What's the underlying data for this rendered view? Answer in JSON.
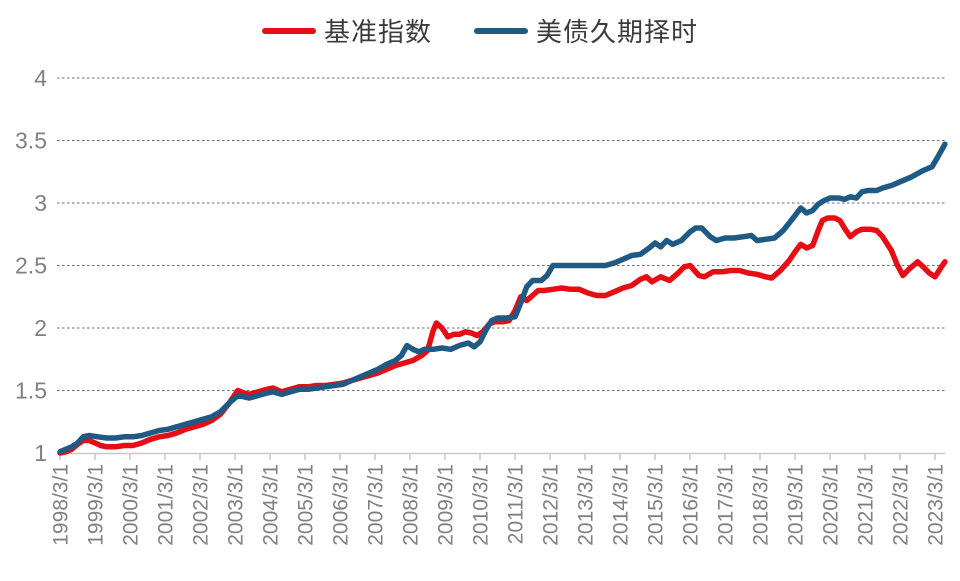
{
  "chart_data": {
    "type": "line",
    "title": "",
    "legend_position": "top-center",
    "grid": "horizontal-dashed",
    "x_axis": {
      "tick_labels": [
        "1998/3/1",
        "1999/3/1",
        "2000/3/1",
        "2001/3/1",
        "2002/3/1",
        "2003/3/1",
        "2004/3/1",
        "2005/3/1",
        "2006/3/1",
        "2007/3/1",
        "2008/3/1",
        "2009/3/1",
        "2010/3/1",
        "2011/3/1",
        "2012/3/1",
        "2013/3/1",
        "2014/3/1",
        "2015/3/1",
        "2016/3/1",
        "2017/3/1",
        "2018/3/1",
        "2019/3/1",
        "2020/3/1",
        "2021/3/1",
        "2022/3/1",
        "2023/3/1"
      ],
      "label_rotation_deg": 90
    },
    "y_axis": {
      "min": 1,
      "max": 4,
      "ticks": [
        1,
        1.5,
        2,
        2.5,
        3,
        3.5,
        4
      ]
    },
    "colors": {
      "benchmark_red": "#e60d15",
      "strategy_blue": "#1e5a84",
      "axis_text": "#808080",
      "gridline": "#6e6e6e",
      "axis_line": "#c8c8c8"
    },
    "series": [
      {
        "name": "基准指数",
        "color": "#e60d15",
        "points": [
          [
            1998.17,
            1.0
          ],
          [
            1998.33,
            1.01
          ],
          [
            1998.5,
            1.03
          ],
          [
            1998.67,
            1.07
          ],
          [
            1998.83,
            1.1
          ],
          [
            1999.0,
            1.1
          ],
          [
            1999.17,
            1.08
          ],
          [
            1999.33,
            1.06
          ],
          [
            1999.5,
            1.05
          ],
          [
            1999.75,
            1.05
          ],
          [
            2000.0,
            1.06
          ],
          [
            2000.25,
            1.06
          ],
          [
            2000.5,
            1.08
          ],
          [
            2000.75,
            1.11
          ],
          [
            2001.0,
            1.13
          ],
          [
            2001.25,
            1.14
          ],
          [
            2001.5,
            1.16
          ],
          [
            2001.75,
            1.19
          ],
          [
            2002.0,
            1.21
          ],
          [
            2002.25,
            1.23
          ],
          [
            2002.5,
            1.26
          ],
          [
            2002.75,
            1.31
          ],
          [
            2003.0,
            1.4
          ],
          [
            2003.25,
            1.5
          ],
          [
            2003.42,
            1.48
          ],
          [
            2003.58,
            1.47
          ],
          [
            2003.83,
            1.49
          ],
          [
            2004.08,
            1.51
          ],
          [
            2004.25,
            1.52
          ],
          [
            2004.5,
            1.49
          ],
          [
            2004.75,
            1.51
          ],
          [
            2005.0,
            1.53
          ],
          [
            2005.25,
            1.53
          ],
          [
            2005.5,
            1.54
          ],
          [
            2005.75,
            1.54
          ],
          [
            2006.0,
            1.55
          ],
          [
            2006.25,
            1.56
          ],
          [
            2006.5,
            1.58
          ],
          [
            2006.75,
            1.6
          ],
          [
            2007.0,
            1.62
          ],
          [
            2007.25,
            1.64
          ],
          [
            2007.5,
            1.67
          ],
          [
            2007.75,
            1.7
          ],
          [
            2008.0,
            1.72
          ],
          [
            2008.25,
            1.74
          ],
          [
            2008.5,
            1.78
          ],
          [
            2008.67,
            1.82
          ],
          [
            2008.83,
            1.98
          ],
          [
            2008.92,
            2.04
          ],
          [
            2009.08,
            2.0
          ],
          [
            2009.25,
            1.93
          ],
          [
            2009.42,
            1.95
          ],
          [
            2009.58,
            1.95
          ],
          [
            2009.75,
            1.97
          ],
          [
            2009.92,
            1.96
          ],
          [
            2010.08,
            1.94
          ],
          [
            2010.25,
            1.97
          ],
          [
            2010.42,
            2.03
          ],
          [
            2010.58,
            2.05
          ],
          [
            2010.83,
            2.05
          ],
          [
            2011.0,
            2.06
          ],
          [
            2011.17,
            2.14
          ],
          [
            2011.33,
            2.25
          ],
          [
            2011.5,
            2.22
          ],
          [
            2011.67,
            2.26
          ],
          [
            2011.83,
            2.3
          ],
          [
            2012.0,
            2.3
          ],
          [
            2012.25,
            2.31
          ],
          [
            2012.5,
            2.32
          ],
          [
            2012.75,
            2.31
          ],
          [
            2013.0,
            2.31
          ],
          [
            2013.25,
            2.28
          ],
          [
            2013.5,
            2.26
          ],
          [
            2013.75,
            2.26
          ],
          [
            2014.0,
            2.29
          ],
          [
            2014.25,
            2.32
          ],
          [
            2014.5,
            2.34
          ],
          [
            2014.75,
            2.39
          ],
          [
            2014.92,
            2.41
          ],
          [
            2015.08,
            2.37
          ],
          [
            2015.33,
            2.41
          ],
          [
            2015.58,
            2.38
          ],
          [
            2015.83,
            2.44
          ],
          [
            2016.0,
            2.49
          ],
          [
            2016.17,
            2.5
          ],
          [
            2016.42,
            2.42
          ],
          [
            2016.58,
            2.41
          ],
          [
            2016.83,
            2.45
          ],
          [
            2017.08,
            2.45
          ],
          [
            2017.33,
            2.46
          ],
          [
            2017.58,
            2.46
          ],
          [
            2017.83,
            2.44
          ],
          [
            2018.08,
            2.43
          ],
          [
            2018.33,
            2.41
          ],
          [
            2018.5,
            2.4
          ],
          [
            2018.75,
            2.46
          ],
          [
            2019.0,
            2.54
          ],
          [
            2019.17,
            2.61
          ],
          [
            2019.33,
            2.67
          ],
          [
            2019.5,
            2.64
          ],
          [
            2019.67,
            2.66
          ],
          [
            2019.83,
            2.78
          ],
          [
            2019.95,
            2.86
          ],
          [
            2020.1,
            2.88
          ],
          [
            2020.3,
            2.88
          ],
          [
            2020.45,
            2.86
          ],
          [
            2020.6,
            2.79
          ],
          [
            2020.75,
            2.73
          ],
          [
            2020.92,
            2.77
          ],
          [
            2021.08,
            2.79
          ],
          [
            2021.33,
            2.79
          ],
          [
            2021.5,
            2.78
          ],
          [
            2021.67,
            2.73
          ],
          [
            2021.92,
            2.62
          ],
          [
            2022.08,
            2.51
          ],
          [
            2022.25,
            2.42
          ],
          [
            2022.42,
            2.47
          ],
          [
            2022.67,
            2.53
          ],
          [
            2022.83,
            2.49
          ],
          [
            2023.0,
            2.44
          ],
          [
            2023.17,
            2.41
          ],
          [
            2023.33,
            2.48
          ],
          [
            2023.45,
            2.53
          ]
        ]
      },
      {
        "name": "美债久期择时",
        "color": "#1e5a84",
        "points": [
          [
            1998.17,
            1.01
          ],
          [
            1998.33,
            1.03
          ],
          [
            1998.5,
            1.05
          ],
          [
            1998.67,
            1.08
          ],
          [
            1998.83,
            1.13
          ],
          [
            1999.0,
            1.14
          ],
          [
            1999.25,
            1.13
          ],
          [
            1999.5,
            1.12
          ],
          [
            1999.75,
            1.12
          ],
          [
            2000.0,
            1.13
          ],
          [
            2000.25,
            1.13
          ],
          [
            2000.5,
            1.14
          ],
          [
            2000.75,
            1.16
          ],
          [
            2001.0,
            1.18
          ],
          [
            2001.25,
            1.19
          ],
          [
            2001.5,
            1.21
          ],
          [
            2001.75,
            1.23
          ],
          [
            2002.0,
            1.25
          ],
          [
            2002.25,
            1.27
          ],
          [
            2002.5,
            1.29
          ],
          [
            2002.75,
            1.33
          ],
          [
            2003.0,
            1.4
          ],
          [
            2003.25,
            1.46
          ],
          [
            2003.42,
            1.45
          ],
          [
            2003.58,
            1.44
          ],
          [
            2003.83,
            1.46
          ],
          [
            2004.08,
            1.48
          ],
          [
            2004.25,
            1.49
          ],
          [
            2004.5,
            1.47
          ],
          [
            2004.75,
            1.49
          ],
          [
            2005.0,
            1.51
          ],
          [
            2005.25,
            1.51
          ],
          [
            2005.5,
            1.52
          ],
          [
            2005.75,
            1.53
          ],
          [
            2006.0,
            1.54
          ],
          [
            2006.25,
            1.55
          ],
          [
            2006.5,
            1.58
          ],
          [
            2006.75,
            1.61
          ],
          [
            2007.0,
            1.64
          ],
          [
            2007.25,
            1.67
          ],
          [
            2007.5,
            1.71
          ],
          [
            2007.75,
            1.74
          ],
          [
            2007.92,
            1.78
          ],
          [
            2008.08,
            1.86
          ],
          [
            2008.25,
            1.83
          ],
          [
            2008.42,
            1.81
          ],
          [
            2008.58,
            1.83
          ],
          [
            2008.83,
            1.83
          ],
          [
            2009.08,
            1.84
          ],
          [
            2009.33,
            1.83
          ],
          [
            2009.58,
            1.86
          ],
          [
            2009.83,
            1.88
          ],
          [
            2010.0,
            1.85
          ],
          [
            2010.17,
            1.89
          ],
          [
            2010.33,
            1.98
          ],
          [
            2010.5,
            2.06
          ],
          [
            2010.67,
            2.08
          ],
          [
            2010.92,
            2.08
          ],
          [
            2011.17,
            2.09
          ],
          [
            2011.33,
            2.2
          ],
          [
            2011.5,
            2.33
          ],
          [
            2011.67,
            2.38
          ],
          [
            2011.92,
            2.38
          ],
          [
            2012.08,
            2.42
          ],
          [
            2012.25,
            2.5
          ],
          [
            2012.5,
            2.5
          ],
          [
            2012.75,
            2.5
          ],
          [
            2013.0,
            2.5
          ],
          [
            2013.25,
            2.5
          ],
          [
            2013.5,
            2.5
          ],
          [
            2013.75,
            2.5
          ],
          [
            2014.0,
            2.52
          ],
          [
            2014.25,
            2.55
          ],
          [
            2014.5,
            2.58
          ],
          [
            2014.75,
            2.59
          ],
          [
            2015.0,
            2.64
          ],
          [
            2015.17,
            2.68
          ],
          [
            2015.33,
            2.65
          ],
          [
            2015.5,
            2.7
          ],
          [
            2015.67,
            2.67
          ],
          [
            2015.92,
            2.7
          ],
          [
            2016.17,
            2.77
          ],
          [
            2016.33,
            2.8
          ],
          [
            2016.5,
            2.8
          ],
          [
            2016.75,
            2.73
          ],
          [
            2016.92,
            2.7
          ],
          [
            2017.17,
            2.72
          ],
          [
            2017.42,
            2.72
          ],
          [
            2017.67,
            2.73
          ],
          [
            2017.92,
            2.74
          ],
          [
            2018.08,
            2.7
          ],
          [
            2018.33,
            2.71
          ],
          [
            2018.58,
            2.72
          ],
          [
            2018.83,
            2.78
          ],
          [
            2019.0,
            2.84
          ],
          [
            2019.17,
            2.9
          ],
          [
            2019.33,
            2.96
          ],
          [
            2019.5,
            2.92
          ],
          [
            2019.67,
            2.94
          ],
          [
            2019.83,
            2.99
          ],
          [
            2020.0,
            3.02
          ],
          [
            2020.17,
            3.04
          ],
          [
            2020.42,
            3.04
          ],
          [
            2020.58,
            3.03
          ],
          [
            2020.75,
            3.05
          ],
          [
            2020.92,
            3.04
          ],
          [
            2021.08,
            3.09
          ],
          [
            2021.25,
            3.1
          ],
          [
            2021.5,
            3.1
          ],
          [
            2021.67,
            3.12
          ],
          [
            2021.92,
            3.14
          ],
          [
            2022.17,
            3.17
          ],
          [
            2022.5,
            3.21
          ],
          [
            2022.83,
            3.26
          ],
          [
            2023.08,
            3.29
          ],
          [
            2023.25,
            3.37
          ],
          [
            2023.45,
            3.47
          ]
        ]
      }
    ]
  }
}
